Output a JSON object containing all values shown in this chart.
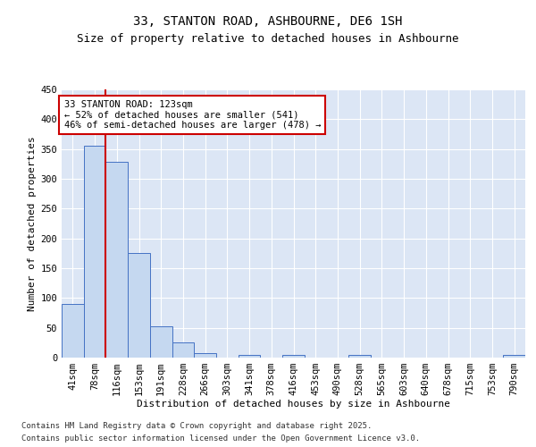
{
  "title1": "33, STANTON ROAD, ASHBOURNE, DE6 1SH",
  "title2": "Size of property relative to detached houses in Ashbourne",
  "xlabel": "Distribution of detached houses by size in Ashbourne",
  "ylabel": "Number of detached properties",
  "categories": [
    "41sqm",
    "78sqm",
    "116sqm",
    "153sqm",
    "191sqm",
    "228sqm",
    "266sqm",
    "303sqm",
    "341sqm",
    "378sqm",
    "416sqm",
    "453sqm",
    "490sqm",
    "528sqm",
    "565sqm",
    "603sqm",
    "640sqm",
    "678sqm",
    "715sqm",
    "753sqm",
    "790sqm"
  ],
  "values": [
    90,
    355,
    328,
    175,
    52,
    25,
    8,
    0,
    4,
    0,
    4,
    0,
    0,
    4,
    0,
    0,
    0,
    0,
    0,
    0,
    4
  ],
  "bar_color": "#c5d8f0",
  "bar_edge_color": "#4472c4",
  "vline_x": 1.5,
  "vline_color": "#cc0000",
  "annotation_line1": "33 STANTON ROAD: 123sqm",
  "annotation_line2": "← 52% of detached houses are smaller (541)",
  "annotation_line3": "46% of semi-detached houses are larger (478) →",
  "annotation_box_color": "#cc0000",
  "ylim": [
    0,
    450
  ],
  "yticks": [
    0,
    50,
    100,
    150,
    200,
    250,
    300,
    350,
    400,
    450
  ],
  "bg_color": "#dce6f5",
  "footer1": "Contains HM Land Registry data © Crown copyright and database right 2025.",
  "footer2": "Contains public sector information licensed under the Open Government Licence v3.0.",
  "title1_fontsize": 10,
  "title2_fontsize": 9,
  "xlabel_fontsize": 8,
  "ylabel_fontsize": 8,
  "tick_fontsize": 7.5,
  "footer_fontsize": 6.5,
  "annot_fontsize": 7.5
}
